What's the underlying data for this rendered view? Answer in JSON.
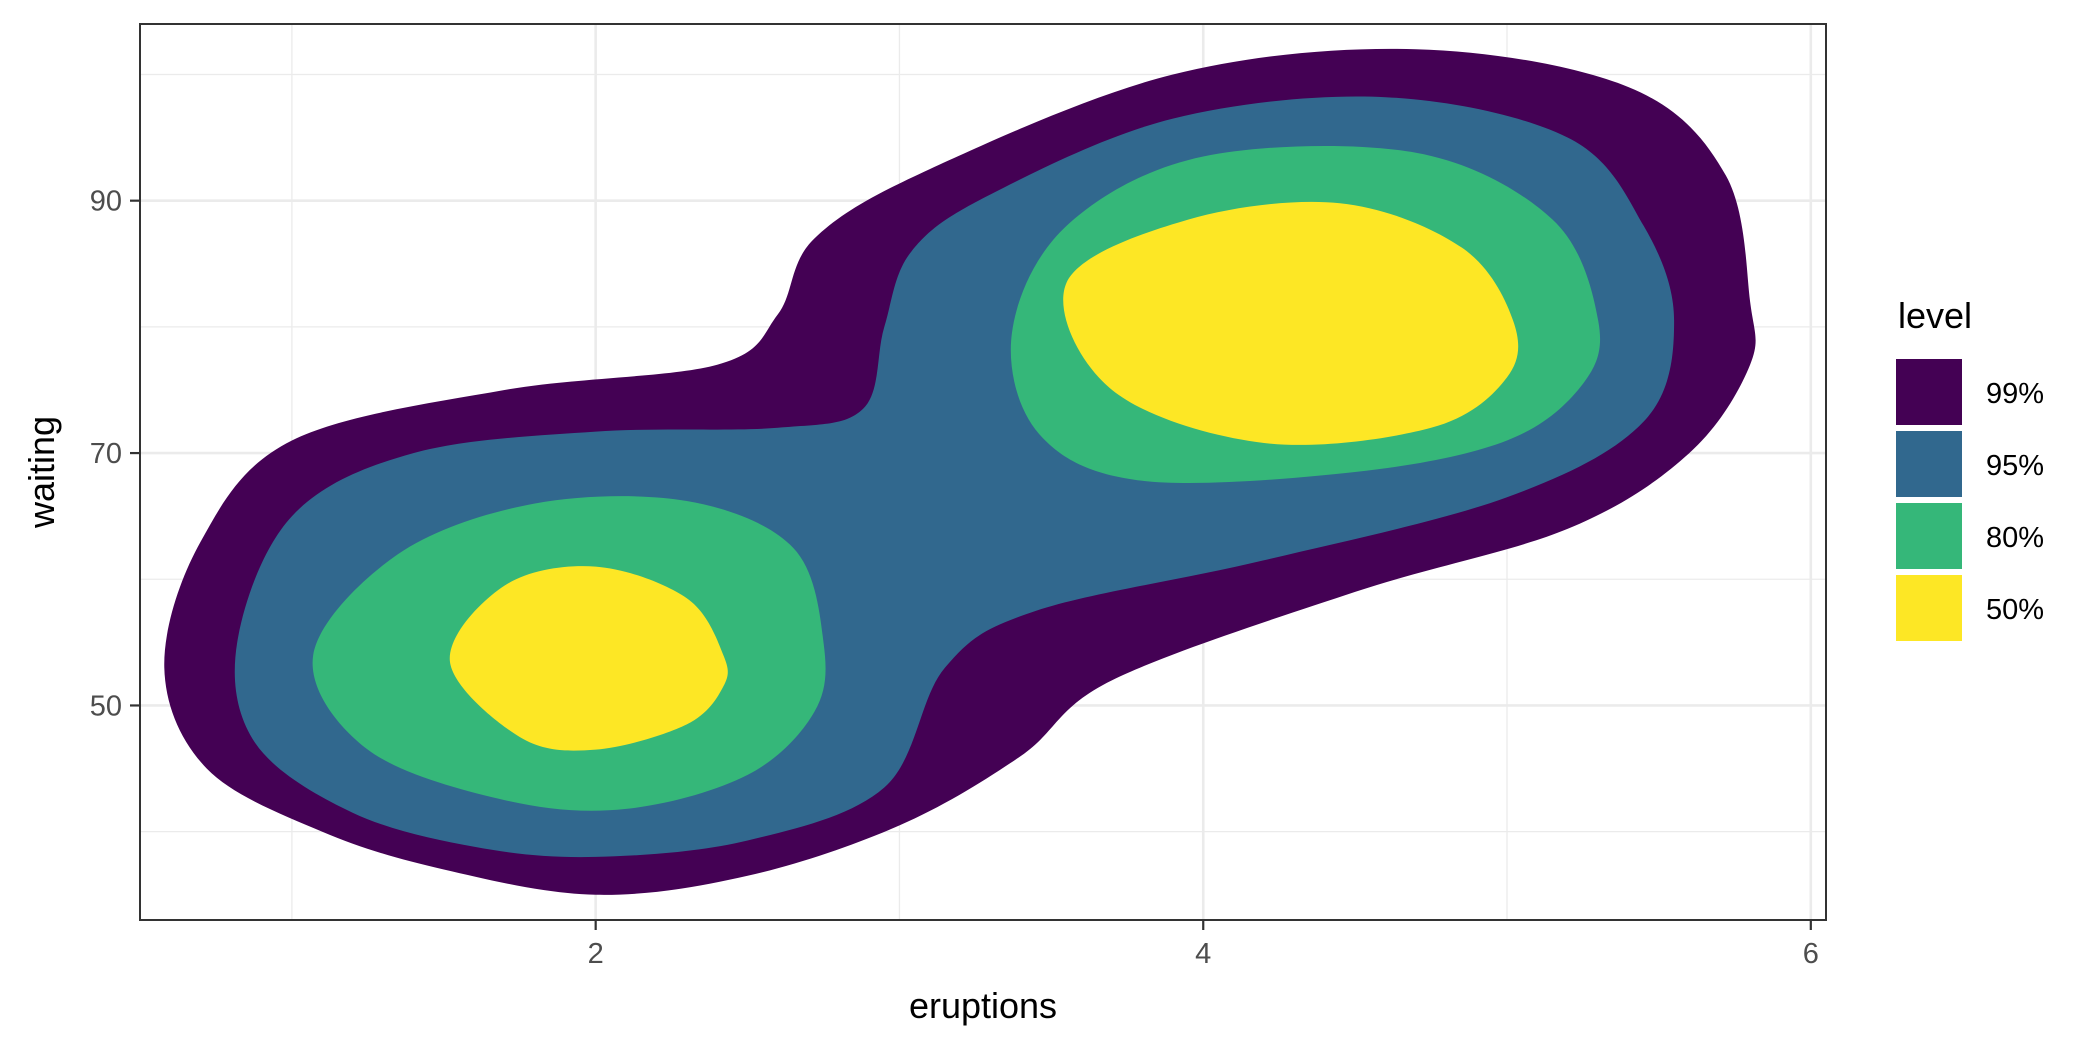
{
  "chart_data": {
    "type": "area",
    "subtype": "density-contour-filled",
    "title": "",
    "xlabel": "eruptions",
    "ylabel": "waiting",
    "xlim": [
      0.5,
      6.05
    ],
    "ylim": [
      33,
      104
    ],
    "x_ticks": [
      2,
      4,
      6
    ],
    "y_ticks": [
      50,
      70,
      90
    ],
    "x_tick_labels": [
      "2",
      "4",
      "6"
    ],
    "y_tick_labels": [
      "50",
      "70",
      "90"
    ],
    "grid": true,
    "theme": "bw",
    "legend": {
      "title": "level",
      "position": "right",
      "entries": [
        {
          "label": "99%",
          "color": "#440154"
        },
        {
          "label": "95%",
          "color": "#31688E"
        },
        {
          "label": "80%",
          "color": "#35B779"
        },
        {
          "label": "50%",
          "color": "#FDE725"
        }
      ]
    },
    "series": [
      {
        "name": "99%",
        "color": "#440154",
        "regions": [
          [
            [
              5.8,
              82
            ],
            [
              5.72,
              92
            ],
            [
              5.4,
              99
            ],
            [
              4.7,
              102
            ],
            [
              3.9,
              100
            ],
            [
              3.1,
              92.5
            ],
            [
              2.72,
              87
            ],
            [
              2.6,
              81
            ],
            [
              2.4,
              77
            ],
            [
              1.7,
              75
            ],
            [
              1.0,
              71
            ],
            [
              0.7,
              63
            ],
            [
              0.58,
              53
            ],
            [
              0.72,
              45
            ],
            [
              1.1,
              40
            ],
            [
              1.5,
              37
            ],
            [
              2.0,
              35
            ],
            [
              2.5,
              36.5
            ],
            [
              3.0,
              40.5
            ],
            [
              3.4,
              46
            ],
            [
              3.7,
              52
            ],
            [
              4.5,
              59
            ],
            [
              5.2,
              64
            ],
            [
              5.6,
              70
            ],
            [
              5.8,
              77
            ]
          ]
        ]
      },
      {
        "name": "95%",
        "color": "#31688E",
        "regions": [
          [
            [
              5.55,
              80.5
            ],
            [
              5.45,
              88
            ],
            [
              5.2,
              95
            ],
            [
              4.6,
              98.2
            ],
            [
              3.9,
              96.5
            ],
            [
              3.3,
              90.5
            ],
            [
              3.04,
              86
            ],
            [
              2.95,
              80
            ],
            [
              2.88,
              73.5
            ],
            [
              2.6,
              72
            ],
            [
              2.0,
              71.7
            ],
            [
              1.4,
              70
            ],
            [
              1.0,
              65
            ],
            [
              0.82,
              55
            ],
            [
              0.88,
              47
            ],
            [
              1.2,
              41.5
            ],
            [
              1.6,
              38.8
            ],
            [
              2.0,
              38
            ],
            [
              2.5,
              39.3
            ],
            [
              2.95,
              43.5
            ],
            [
              3.15,
              53
            ],
            [
              3.45,
              57.5
            ],
            [
              4.2,
              61.5
            ],
            [
              5.0,
              66.5
            ],
            [
              5.45,
              72.5
            ]
          ]
        ]
      },
      {
        "name": "80%",
        "color": "#35B779",
        "regions": [
          [
            [
              5.3,
              80.5
            ],
            [
              5.15,
              88.5
            ],
            [
              4.7,
              93.8
            ],
            [
              4.0,
              93.5
            ],
            [
              3.55,
              88
            ],
            [
              3.37,
              79.5
            ],
            [
              3.46,
              71.5
            ],
            [
              3.8,
              67.8
            ],
            [
              4.5,
              68.5
            ],
            [
              5.0,
              71
            ],
            [
              5.25,
              75.5
            ]
          ],
          [
            [
              2.75,
              55
            ],
            [
              2.65,
              62.5
            ],
            [
              2.3,
              66.2
            ],
            [
              1.8,
              66
            ],
            [
              1.35,
              62
            ],
            [
              1.07,
              54
            ],
            [
              1.25,
              46.5
            ],
            [
              1.7,
              42.5
            ],
            [
              2.1,
              41.8
            ],
            [
              2.5,
              44.5
            ],
            [
              2.72,
              49.5
            ]
          ]
        ]
      },
      {
        "name": "50%",
        "color": "#FDE725",
        "regions": [
          [
            [
              5.02,
              80.5
            ],
            [
              4.85,
              86.3
            ],
            [
              4.45,
              89.8
            ],
            [
              3.95,
              88.5
            ],
            [
              3.55,
              83.5
            ],
            [
              3.7,
              75
            ],
            [
              4.2,
              70.8
            ],
            [
              4.75,
              72
            ],
            [
              5.0,
              76
            ]
          ],
          [
            [
              2.42,
              54
            ],
            [
              2.3,
              58.5
            ],
            [
              2.0,
              61
            ],
            [
              1.7,
              59.5
            ],
            [
              1.52,
              53.5
            ],
            [
              1.75,
              47.5
            ],
            [
              2.0,
              46.5
            ],
            [
              2.3,
              48.5
            ],
            [
              2.42,
              51.5
            ]
          ]
        ]
      }
    ]
  }
}
